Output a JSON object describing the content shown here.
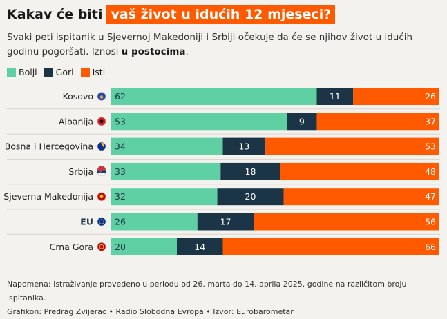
{
  "title": {
    "prefix": "Kakav će biti",
    "highlight": "vaš život u idućih 12 mjeseci?"
  },
  "subtitle": {
    "text": "Svaki peti ispitanik u Sjevernoj Makedoniji i Srbiji očekuje da će se njihov život u idućih godinu pogoršati. Iznosi",
    "bold": "u postocima",
    "end": "."
  },
  "colors": {
    "Bolji": "#5fd0a3",
    "Gori": "#1b3547",
    "Isti": "#ff5a00"
  },
  "chart_data": {
    "type": "bar",
    "orientation": "horizontal",
    "stacked": true,
    "categories": [
      "Kosovo",
      "Albanija",
      "Bosna i Hercegovina",
      "Srbija",
      "Sjeverna Makedonija",
      "EU",
      "Crna Gora"
    ],
    "category_icons": [
      "kosovo-flag-icon",
      "albania-flag-icon",
      "bih-flag-icon",
      "serbia-flag-icon",
      "north-macedonia-flag-icon",
      "eu-flag-icon",
      "montenegro-flag-icon"
    ],
    "series": [
      {
        "name": "Bolji",
        "values": [
          62,
          53,
          34,
          33,
          32,
          26,
          20
        ]
      },
      {
        "name": "Gori",
        "values": [
          11,
          9,
          13,
          18,
          20,
          17,
          14
        ]
      },
      {
        "name": "Isti",
        "values": [
          26,
          37,
          53,
          48,
          47,
          56,
          66
        ]
      }
    ],
    "legend_position": "top-left"
  },
  "note": {
    "line1": "Napomena: Istraživanje provedeno u periodu od 26. marta do 14. aprila 2025. godine na različitom broju ispitanika.",
    "line2": "Grafikon: Predrag Zvijerac • Radio Slobodna Evropa • Izvor: Eurobarometar"
  }
}
